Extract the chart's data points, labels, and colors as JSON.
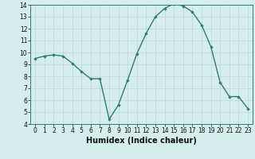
{
  "x": [
    0,
    1,
    2,
    3,
    4,
    5,
    6,
    7,
    8,
    9,
    10,
    11,
    12,
    13,
    14,
    15,
    16,
    17,
    18,
    19,
    20,
    21,
    22,
    23
  ],
  "y": [
    9.5,
    9.7,
    9.8,
    9.7,
    9.1,
    8.4,
    7.8,
    7.8,
    4.4,
    5.6,
    7.7,
    9.9,
    11.6,
    13.0,
    13.7,
    14.1,
    13.9,
    13.4,
    12.3,
    10.5,
    7.5,
    6.3,
    6.3,
    5.3
  ],
  "ylim": [
    4,
    14
  ],
  "xlim": [
    -0.5,
    23.5
  ],
  "yticks": [
    4,
    5,
    6,
    7,
    8,
    9,
    10,
    11,
    12,
    13,
    14
  ],
  "xticks": [
    0,
    1,
    2,
    3,
    4,
    5,
    6,
    7,
    8,
    9,
    10,
    11,
    12,
    13,
    14,
    15,
    16,
    17,
    18,
    19,
    20,
    21,
    22,
    23
  ],
  "xlabel": "Humidex (Indice chaleur)",
  "line_color": "#2e7d6e",
  "marker": "D",
  "marker_size": 1.8,
  "bg_color": "#d6eeeb",
  "grid_color": "#b8d8d4",
  "line_width": 1.0,
  "tick_fontsize": 5.5,
  "xlabel_fontsize": 7.0
}
